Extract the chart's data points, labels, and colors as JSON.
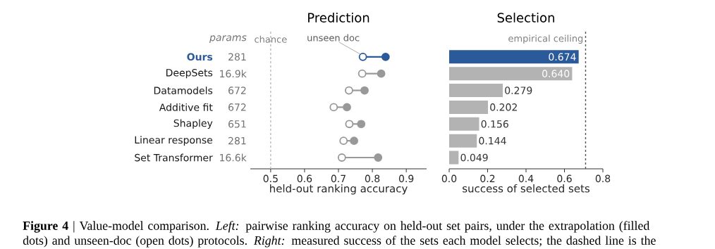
{
  "chart_data": [
    {
      "type": "scatter",
      "orientation": "horizontal",
      "title": "Prediction",
      "xlabel": "held-out ranking accuracy",
      "categories": [
        "Ours",
        "DeepSets",
        "Datamodels",
        "Additive fit",
        "Shapley",
        "Linear response",
        "Set Transformer"
      ],
      "series": [
        {
          "colors": [
            "#2b5a9b",
            "#999999",
            "#999999",
            "#999999",
            "#999999",
            "#999999",
            "#999999"
          ],
          "values": [
            0.839,
            0.826,
            0.777,
            0.725,
            0.767,
            0.746,
            0.817
          ]
        },
        {
          "colors": [
            "#2b5a9b",
            "#999999",
            "#999999",
            "#999999",
            "#999999",
            "#999999",
            "#999999"
          ],
          "values": [
            0.772,
            0.77,
            0.731,
            0.686,
            0.732,
            0.715,
            0.71
          ]
        }
      ],
      "marker": "circle",
      "xlim": [
        0.44,
        0.96
      ],
      "xticks": [
        0.5,
        0.6,
        0.7,
        0.8,
        0.9
      ],
      "ref_lines": [
        {
          "axis": "x",
          "value": 0.5,
          "label": "chance",
          "color": "#bbbbbb",
          "line_style": "dashed"
        }
      ],
      "annotations": [
        "params",
        "**Figure 4** | Value-model comparison. *Left:* pairwise ranking accuracy on held-out set pairs, under the extrapolation (filled dots) and unseen-doc (open dots) protocols. *Right:* measured success of the sets each model selects; the dashed line is the",
        "281",
        "16.9k",
        "672",
        "672",
        "651",
        "281",
        "16.6k",
        {
          "text": "unseen doc",
          "x": 0.772,
          "y": "Ours"
        }
      ]
    },
    {
      "type": "bar",
      "orientation": "horizontal",
      "title": "Selection",
      "xlabel": "success of selected sets",
      "categories": [
        "Ours",
        "DeepSets",
        "Datamodels",
        "Additive fit",
        "Shapley",
        "Linear response",
        "Set Transformer"
      ],
      "values": [
        0.674,
        0.64,
        0.279,
        0.202,
        0.156,
        0.144,
        0.049
      ],
      "colors": [
        "#2b5a9b",
        "#b3b3b3",
        "#b3b3b3",
        "#b3b3b3",
        "#b3b3b3",
        "#b3b3b3",
        "#b3b3b3"
      ],
      "value_labels": [
        "0.674",
        "0.640",
        "0.279",
        "0.202",
        "0.156",
        "0.144",
        "0.049"
      ],
      "xlim": [
        0,
        0.8
      ],
      "xticks": [
        {
          "value": 0,
          "label": "0.0"
        },
        0.2,
        0.4,
        0.6,
        0.8
      ],
      "ref_lines": [
        {
          "axis": "x",
          "value": 0.71,
          "label": "empirical ceiling",
          "color": "#555555",
          "line_style": "dashed"
        }
      ],
      "tick_labels": "x"
    }
  ]
}
